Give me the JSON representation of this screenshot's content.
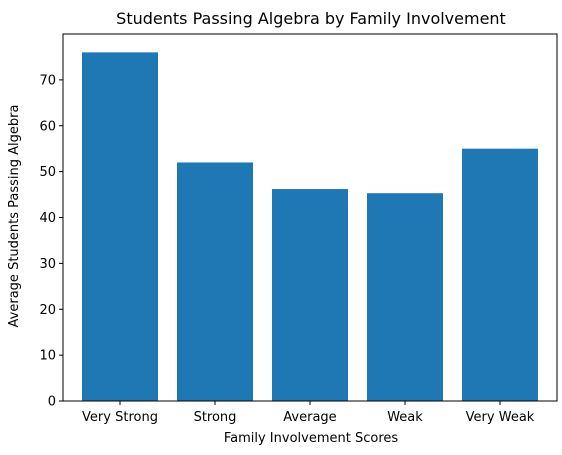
{
  "chart_data": {
    "type": "bar",
    "title": "Students Passing Algebra by Family Involvement",
    "xlabel": "Family Involvement Scores",
    "ylabel": "Average Students Passing Algebra",
    "categories": [
      "Very Strong",
      "Strong",
      "Average",
      "Weak",
      "Very Weak"
    ],
    "values": [
      76,
      52,
      46.2,
      45.3,
      55
    ],
    "ylim": [
      0,
      80
    ],
    "yticks": [
      0,
      10,
      20,
      30,
      40,
      50,
      60,
      70
    ],
    "bar_color": "#1f77b4",
    "grid": false
  }
}
